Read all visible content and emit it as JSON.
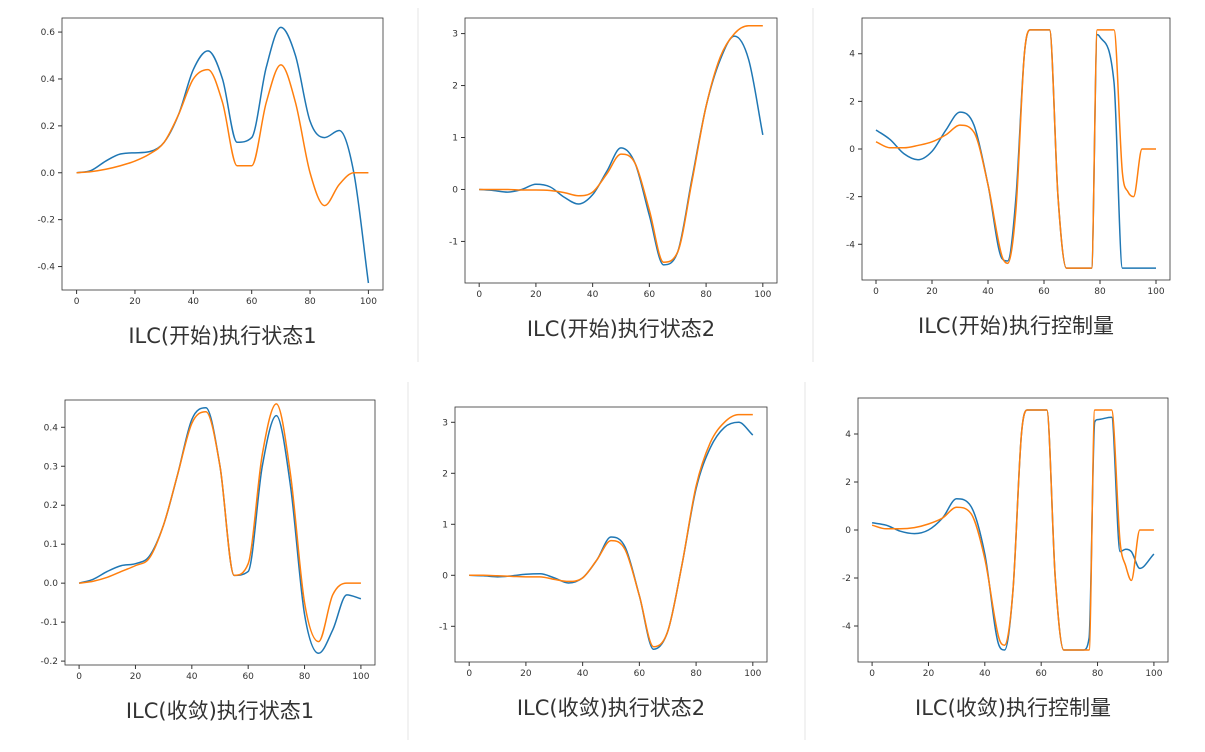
{
  "chart_data": [
    {
      "type": "line",
      "title": "ILC(开始)执行状态1",
      "x": [
        0,
        5,
        10,
        15,
        20,
        25,
        30,
        35,
        40,
        45,
        50,
        55,
        60,
        65,
        70,
        75,
        80,
        85,
        90,
        95,
        100
      ],
      "xlim": [
        -5,
        105
      ],
      "xticks": [
        0,
        20,
        40,
        60,
        80,
        100
      ],
      "ylim": [
        -0.5,
        0.66
      ],
      "yticks": [
        -0.4,
        -0.2,
        {
          "value": 0,
          "label": "0.0"
        },
        0.2,
        0.4,
        0.6
      ],
      "series": [
        {
          "color": "#1f77b4",
          "values": [
            0,
            0.01,
            0.05,
            0.08,
            0.085,
            0.09,
            0.13,
            0.25,
            0.44,
            0.52,
            0.4,
            0.13,
            0.15,
            0.45,
            0.62,
            0.5,
            0.22,
            0.15,
            0.18,
            0,
            -0.47
          ]
        },
        {
          "color": "#ff7f0e",
          "values": [
            0,
            0.005,
            0.015,
            0.03,
            0.05,
            0.08,
            0.13,
            0.25,
            0.4,
            0.44,
            0.3,
            0.03,
            0.03,
            0.3,
            0.46,
            0.3,
            0,
            -0.14,
            -0.05,
            0,
            0
          ]
        }
      ]
    },
    {
      "type": "line",
      "title": "ILC(开始)执行状态2",
      "x": [
        0,
        5,
        10,
        15,
        20,
        25,
        30,
        35,
        40,
        45,
        50,
        55,
        60,
        65,
        70,
        75,
        80,
        85,
        90,
        95,
        100
      ],
      "xlim": [
        -5,
        105
      ],
      "xticks": [
        0,
        20,
        40,
        60,
        80,
        100
      ],
      "ylim": [
        -1.8,
        3.3
      ],
      "yticks": [
        -1,
        0,
        1,
        2,
        3
      ],
      "series": [
        {
          "color": "#1f77b4",
          "values": [
            0,
            -0.02,
            -0.05,
            0,
            0.1,
            0.05,
            -0.15,
            -0.28,
            -0.1,
            0.35,
            0.8,
            0.5,
            -0.5,
            -1.45,
            -1.2,
            0.2,
            1.6,
            2.5,
            2.95,
            2.5,
            1.05
          ]
        },
        {
          "color": "#ff7f0e",
          "values": [
            0,
            0,
            0,
            -0.01,
            -0.01,
            -0.02,
            -0.06,
            -0.12,
            -0.05,
            0.3,
            0.68,
            0.5,
            -0.4,
            -1.4,
            -1.2,
            0.15,
            1.6,
            2.55,
            3,
            3.15,
            3.15
          ]
        }
      ]
    },
    {
      "type": "line",
      "title": "ILC(开始)执行控制量",
      "x": [
        0,
        5,
        10,
        15,
        20,
        25,
        30,
        35,
        40,
        45,
        47,
        50,
        53,
        55,
        60,
        62,
        65,
        68,
        70,
        75,
        77,
        79,
        80,
        85,
        88,
        90,
        92,
        95,
        100
      ],
      "xlim": [
        -5,
        105
      ],
      "xticks": [
        0,
        20,
        40,
        60,
        80,
        100
      ],
      "ylim": [
        -5.5,
        5.5
      ],
      "yticks": [
        -4,
        -2,
        0,
        2,
        4
      ],
      "series": [
        {
          "color": "#1f77b4",
          "values": [
            0.8,
            0.4,
            -0.2,
            -0.45,
            -0.1,
            0.8,
            1.55,
            1,
            -1.5,
            -4.6,
            -4.7,
            -2,
            4,
            5,
            5,
            5,
            -2,
            -5,
            -5,
            -5,
            -5,
            4.8,
            4.7,
            2.8,
            -5,
            -5,
            -5,
            -5,
            -5
          ]
        },
        {
          "color": "#ff7f0e",
          "values": [
            0.3,
            0.05,
            0.05,
            0.15,
            0.3,
            0.6,
            1,
            0.7,
            -1.5,
            -4.5,
            -4.8,
            -2.5,
            4,
            5,
            5,
            5,
            -2,
            -5,
            -5,
            -5,
            -5,
            5,
            5,
            5,
            -1,
            -1.8,
            -2,
            0,
            0
          ]
        }
      ]
    },
    {
      "type": "line",
      "title": "ILC(收敛)执行状态1",
      "x": [
        0,
        5,
        10,
        15,
        20,
        25,
        30,
        35,
        40,
        45,
        50,
        55,
        60,
        65,
        70,
        75,
        80,
        85,
        90,
        95,
        100
      ],
      "xlim": [
        -5,
        105
      ],
      "xticks": [
        0,
        20,
        40,
        60,
        80,
        100
      ],
      "ylim": [
        -0.21,
        0.47
      ],
      "yticks": [
        -0.2,
        -0.1,
        {
          "value": 0,
          "label": "0.0"
        },
        0.1,
        0.2,
        0.3,
        0.4
      ],
      "series": [
        {
          "color": "#1f77b4",
          "values": [
            0,
            0.01,
            0.03,
            0.045,
            0.05,
            0.07,
            0.15,
            0.28,
            0.42,
            0.45,
            0.3,
            0.02,
            0.03,
            0.3,
            0.43,
            0.25,
            -0.08,
            -0.18,
            -0.12,
            -0.03,
            -0.04
          ]
        },
        {
          "color": "#ff7f0e",
          "values": [
            0,
            0.005,
            0.015,
            0.03,
            0.045,
            0.065,
            0.15,
            0.28,
            0.41,
            0.44,
            0.3,
            0.02,
            0.05,
            0.33,
            0.46,
            0.28,
            -0.05,
            -0.15,
            -0.03,
            0,
            0
          ]
        }
      ]
    },
    {
      "type": "line",
      "title": "ILC(收敛)执行状态2",
      "x": [
        0,
        5,
        10,
        15,
        20,
        25,
        30,
        35,
        40,
        45,
        50,
        55,
        60,
        65,
        70,
        75,
        80,
        85,
        90,
        95,
        100
      ],
      "xlim": [
        -5,
        105
      ],
      "xticks": [
        0,
        20,
        40,
        60,
        80,
        100
      ],
      "ylim": [
        -1.7,
        3.3
      ],
      "yticks": [
        -1,
        0,
        1,
        2,
        3
      ],
      "series": [
        {
          "color": "#1f77b4",
          "values": [
            0,
            -0.01,
            -0.03,
            -0.01,
            0.02,
            0.03,
            -0.05,
            -0.15,
            -0.05,
            0.3,
            0.75,
            0.55,
            -0.4,
            -1.45,
            -1.1,
            0.2,
            1.7,
            2.5,
            2.9,
            3,
            2.75
          ]
        },
        {
          "color": "#ff7f0e",
          "values": [
            0,
            0,
            -0.01,
            -0.02,
            -0.03,
            -0.03,
            -0.08,
            -0.12,
            -0.05,
            0.3,
            0.68,
            0.5,
            -0.4,
            -1.4,
            -1.1,
            0.2,
            1.75,
            2.6,
            3,
            3.15,
            3.15
          ]
        }
      ]
    },
    {
      "type": "line",
      "title": "ILC(收敛)执行控制量",
      "x": [
        0,
        5,
        10,
        15,
        20,
        25,
        30,
        35,
        40,
        45,
        47,
        50,
        53,
        55,
        60,
        62,
        65,
        68,
        70,
        75,
        77,
        79,
        80,
        85,
        88,
        90,
        92,
        95,
        100
      ],
      "xlim": [
        -5,
        105
      ],
      "xticks": [
        0,
        20,
        40,
        60,
        80,
        100
      ],
      "ylim": [
        -5.5,
        5.5
      ],
      "yticks": [
        -4,
        -2,
        0,
        2,
        4
      ],
      "series": [
        {
          "color": "#1f77b4",
          "values": [
            0.3,
            0.2,
            -0.05,
            -0.15,
            0,
            0.5,
            1.3,
            1,
            -1,
            -4.8,
            -5,
            -2.5,
            4,
            5,
            5,
            5,
            -2,
            -5,
            -5,
            -5,
            -4.5,
            4.5,
            4.6,
            4.7,
            -0.9,
            -0.8,
            -0.9,
            -1.6,
            -1
          ]
        },
        {
          "color": "#ff7f0e",
          "values": [
            0.2,
            0.05,
            0.05,
            0.1,
            0.25,
            0.5,
            0.95,
            0.7,
            -1.2,
            -4.5,
            -4.8,
            -2.5,
            4,
            5,
            5,
            5,
            -2,
            -5,
            -5,
            -5,
            -5,
            5,
            5,
            5,
            -0.5,
            -1.5,
            -2.1,
            0,
            0
          ]
        }
      ]
    }
  ]
}
